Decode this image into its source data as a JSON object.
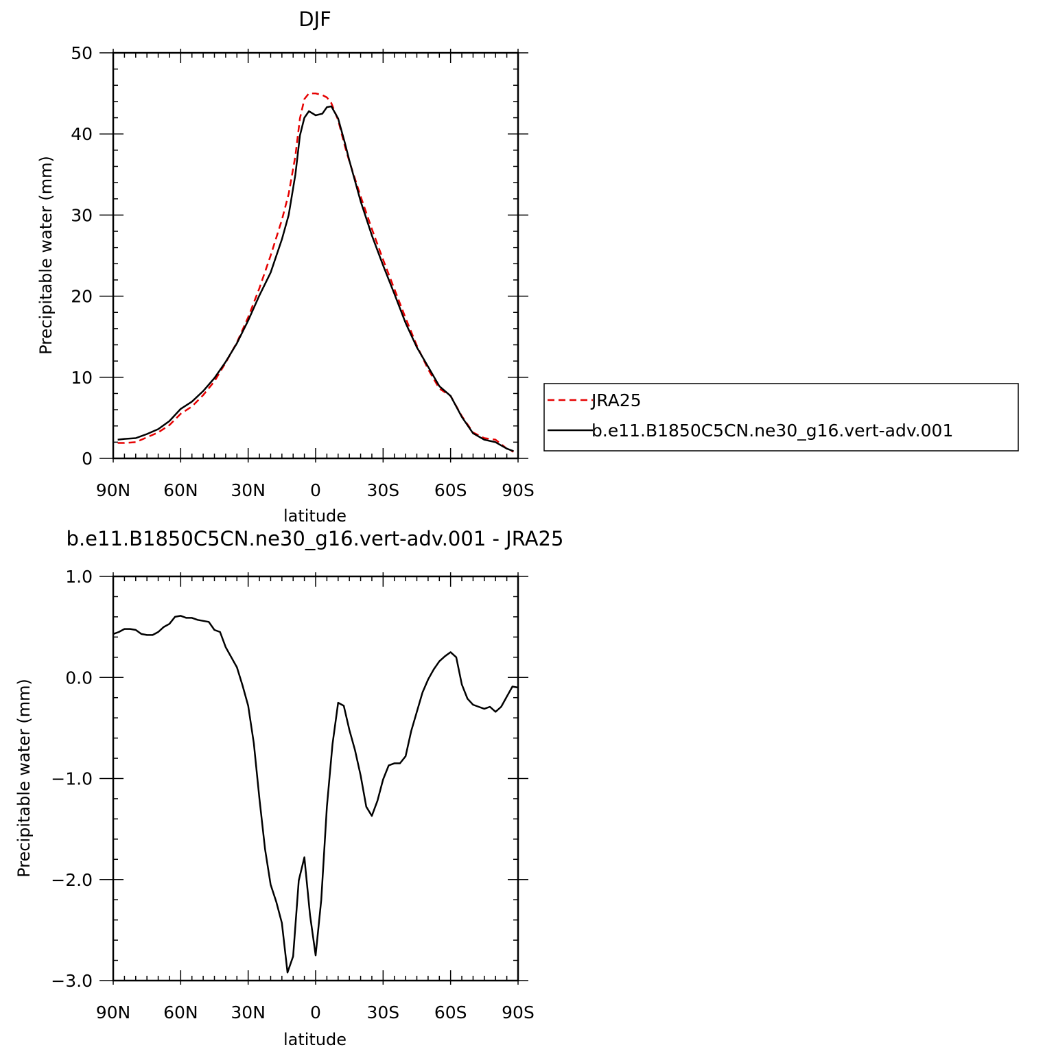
{
  "chart_data": [
    {
      "type": "line",
      "title": "DJF",
      "xlabel": "latitude",
      "ylabel": "Precipitable water (mm)",
      "x_ticks": [
        "90N",
        "60N",
        "30N",
        "0",
        "30S",
        "60S",
        "90S"
      ],
      "y_ticks": [
        "0",
        "10",
        "20",
        "30",
        "40",
        "50"
      ],
      "xlim": [
        90,
        -90
      ],
      "ylim": [
        0,
        50
      ],
      "legend": {
        "placement": "right",
        "entries": [
          "JRA25",
          "b.e11.B1850C5CN.ne30_g16.vert-adv.001"
        ]
      },
      "series": [
        {
          "name": "JRA25",
          "color": "#e60000",
          "style": "dashed",
          "x": [
            88,
            85,
            80,
            75,
            70,
            65,
            60,
            55,
            50,
            45,
            40,
            35,
            30,
            25,
            20,
            15,
            12,
            9,
            7,
            5,
            3,
            0,
            -3,
            -5,
            -7,
            -10,
            -13,
            -15,
            -20,
            -25,
            -30,
            -35,
            -40,
            -45,
            -50,
            -55,
            -60,
            -65,
            -70,
            -75,
            -80,
            -85,
            -88
          ],
          "y": [
            1.9,
            1.9,
            2.0,
            2.6,
            3.2,
            4.1,
            5.5,
            6.4,
            7.8,
            9.5,
            11.8,
            14.3,
            17.4,
            21.0,
            25.0,
            29.4,
            32.6,
            37.3,
            41.9,
            44.3,
            45.0,
            45.0,
            44.8,
            44.5,
            43.8,
            41.7,
            38.5,
            36.6,
            32.3,
            28.3,
            24.5,
            20.9,
            17.3,
            13.9,
            11.0,
            8.6,
            7.7,
            5.2,
            3.2,
            2.5,
            2.3,
            1.2,
            0.8
          ]
        },
        {
          "name": "b.e11.B1850C5CN.ne30_g16.vert-adv.001",
          "color": "#000000",
          "style": "solid",
          "x": [
            88,
            85,
            80,
            75,
            70,
            65,
            60,
            55,
            50,
            45,
            40,
            35,
            30,
            25,
            20,
            15,
            12,
            9,
            7,
            5,
            3,
            0,
            -3,
            -5,
            -7,
            -10,
            -13,
            -15,
            -20,
            -25,
            -30,
            -35,
            -40,
            -45,
            -50,
            -55,
            -60,
            -65,
            -70,
            -75,
            -80,
            -85,
            -88
          ],
          "y": [
            2.3,
            2.4,
            2.5,
            3.0,
            3.6,
            4.6,
            6.1,
            7.0,
            8.3,
            9.9,
            11.9,
            14.2,
            17.0,
            20.1,
            22.9,
            27.0,
            30.0,
            35.0,
            39.8,
            42.0,
            42.8,
            42.3,
            42.5,
            43.3,
            43.4,
            41.9,
            38.9,
            36.7,
            31.7,
            27.5,
            23.8,
            20.3,
            16.7,
            13.7,
            11.3,
            8.9,
            7.7,
            5.1,
            3.1,
            2.3,
            2.0,
            1.2,
            0.9
          ]
        }
      ]
    },
    {
      "type": "line",
      "title": "b.e11.B1850C5CN.ne30_g16.vert-adv.001 - JRA25",
      "xlabel": "latitude",
      "ylabel": "Precipitable water (mm)",
      "x_ticks": [
        "90N",
        "60N",
        "30N",
        "0",
        "30S",
        "60S",
        "90S"
      ],
      "y_ticks": [
        "1.0",
        "0.0",
        "-1.0",
        "-2.0",
        "-3.0"
      ],
      "xlim": [
        90,
        -90
      ],
      "ylim": [
        -3.0,
        1.0
      ],
      "series": [
        {
          "color": "#000000",
          "style": "solid",
          "x": [
            90,
            87.5,
            85,
            82.5,
            80,
            77.5,
            75,
            72.5,
            70,
            67.5,
            65,
            62.5,
            60,
            57.5,
            55,
            52.5,
            50,
            47.5,
            45,
            42.5,
            40,
            37.5,
            35,
            32.5,
            30,
            27.5,
            25,
            22.5,
            20,
            17.5,
            15,
            12.5,
            10,
            7.5,
            5,
            2.5,
            0,
            -2.5,
            -5,
            -7.5,
            -10,
            -12.5,
            -15,
            -17.5,
            -20,
            -22.5,
            -25,
            -27.5,
            -30,
            -32.5,
            -35,
            -37.5,
            -40,
            -42.5,
            -45,
            -47.5,
            -50,
            -52.5,
            -55,
            -57.5,
            -60,
            -62.5,
            -65,
            -67.5,
            -70,
            -72.5,
            -75,
            -77.5,
            -80,
            -82.5,
            -85,
            -87.5,
            -90
          ],
          "y": [
            0.43,
            0.45,
            0.48,
            0.48,
            0.47,
            0.43,
            0.42,
            0.42,
            0.45,
            0.5,
            0.53,
            0.6,
            0.61,
            0.59,
            0.59,
            0.57,
            0.56,
            0.55,
            0.47,
            0.45,
            0.3,
            0.2,
            0.1,
            -0.08,
            -0.28,
            -0.65,
            -1.2,
            -1.7,
            -2.05,
            -2.22,
            -2.43,
            -2.92,
            -2.76,
            -2.01,
            -1.78,
            -2.35,
            -2.75,
            -2.2,
            -1.28,
            -0.66,
            -0.25,
            -0.28,
            -0.52,
            -0.72,
            -0.97,
            -1.28,
            -1.37,
            -1.22,
            -1.01,
            -0.87,
            -0.85,
            -0.85,
            -0.78,
            -0.53,
            -0.34,
            -0.15,
            -0.02,
            0.08,
            0.16,
            0.21,
            0.25,
            0.2,
            -0.07,
            -0.21,
            -0.27,
            -0.29,
            -0.31,
            -0.29,
            -0.34,
            -0.29,
            -0.19,
            -0.09,
            -0.1
          ]
        }
      ]
    }
  ]
}
